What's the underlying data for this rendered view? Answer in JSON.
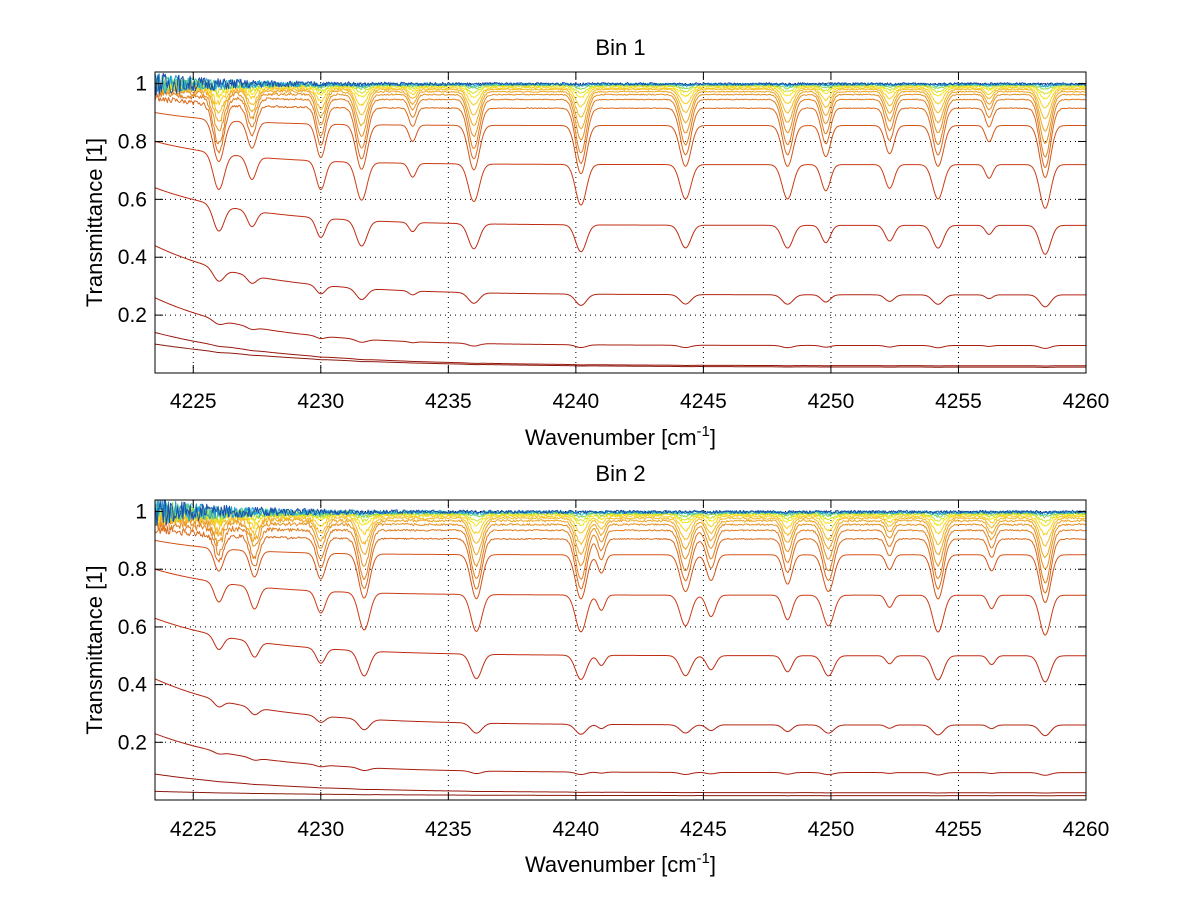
{
  "chart_data": [
    {
      "type": "line",
      "title": "Bin 1",
      "xlabel": "Wavenumber [cm",
      "xlabel_sup": "-1",
      "xlabel_end": "]",
      "ylabel": "Transmittance [1]",
      "xlim": [
        4223.5,
        4260
      ],
      "ylim": [
        0,
        1.04
      ],
      "xticks": [
        4225,
        4230,
        4235,
        4240,
        4245,
        4250,
        4255,
        4260
      ],
      "yticks": [
        0.2,
        0.4,
        0.6,
        0.8,
        1
      ],
      "xtick_labels": [
        "4225",
        "4230",
        "4235",
        "4240",
        "4245",
        "4250",
        "4255",
        "4260"
      ],
      "ytick_labels": [
        "0.2",
        "0.4",
        "0.6",
        "0.8",
        "1"
      ],
      "grid": true,
      "legend": "none",
      "lines": [
        {
          "color": "#8b1a0f",
          "base": 0.02,
          "start": 0.1,
          "tau": 6.0,
          "depth": 0.05,
          "noise": 0
        },
        {
          "color": "#99170d",
          "base": 0.025,
          "start": 0.14,
          "tau": 5.0,
          "depth": 0.05,
          "noise": 0
        },
        {
          "color": "#a81e10",
          "base": 0.095,
          "start": 0.26,
          "tau": 4.0,
          "depth": 0.15,
          "noise": 0
        },
        {
          "color": "#b32412",
          "base": 0.27,
          "start": 0.44,
          "tau": 4.0,
          "depth": 0.22,
          "noise": 0
        },
        {
          "color": "#c02d14",
          "base": 0.51,
          "start": 0.64,
          "tau": 4.0,
          "depth": 0.28,
          "noise": 0
        },
        {
          "color": "#cc3c16",
          "base": 0.72,
          "start": 0.8,
          "tau": 3.5,
          "depth": 0.3,
          "noise": 0
        },
        {
          "color": "#d35418",
          "base": 0.855,
          "start": 0.9,
          "tau": 3.0,
          "depth": 0.3,
          "noise": 0
        },
        {
          "color": "#da6a1c",
          "base": 0.915,
          "start": 0.95,
          "tau": 2.5,
          "depth": 0.32,
          "noise": 0.004
        },
        {
          "color": "#e07e20",
          "base": 0.945,
          "start": 0.965,
          "tau": 2.0,
          "depth": 0.3,
          "noise": 0.005
        },
        {
          "color": "#e59022",
          "base": 0.962,
          "start": 0.975,
          "tau": 2.0,
          "depth": 0.25,
          "noise": 0.006
        },
        {
          "color": "#eda524",
          "base": 0.972,
          "start": 0.985,
          "tau": 2.0,
          "depth": 0.2,
          "noise": 0.007
        },
        {
          "color": "#f3ba24",
          "base": 0.98,
          "start": 0.99,
          "tau": 2.0,
          "depth": 0.15,
          "noise": 0.008
        },
        {
          "color": "#f8cf1e",
          "base": 0.985,
          "start": 0.99,
          "tau": 2.0,
          "depth": 0.1,
          "noise": 0.008
        },
        {
          "color": "#f6e41a",
          "base": 0.99,
          "start": 0.995,
          "tau": 2.0,
          "depth": 0.06,
          "noise": 0.009
        },
        {
          "color": "#cfe22e",
          "base": 0.993,
          "start": 0.997,
          "tau": 2.0,
          "depth": 0.04,
          "noise": 0.009
        },
        {
          "color": "#8bd64a",
          "base": 0.995,
          "start": 1.0,
          "tau": 2.0,
          "depth": 0.02,
          "noise": 0.01
        },
        {
          "color": "#3fc7b5",
          "base": 0.997,
          "start": 1.0,
          "tau": 2.0,
          "depth": 0.01,
          "noise": 0.012
        },
        {
          "color": "#1f9ad6",
          "base": 0.998,
          "start": 1.0,
          "tau": 2.0,
          "depth": 0.005,
          "noise": 0.014
        },
        {
          "color": "#1b4fa8",
          "base": 0.999,
          "start": 1.0,
          "tau": 2.0,
          "depth": 0.002,
          "noise": 0.015
        }
      ],
      "absorption_lines": [
        {
          "x": 4226.0,
          "w": 0.3
        },
        {
          "x": 4227.3,
          "w": 0.25
        },
        {
          "x": 4230.0,
          "w": 0.25
        },
        {
          "x": 4231.6,
          "w": 0.3
        },
        {
          "x": 4233.6,
          "w": 0.2
        },
        {
          "x": 4236.0,
          "w": 0.3
        },
        {
          "x": 4240.2,
          "w": 0.3
        },
        {
          "x": 4244.3,
          "w": 0.3
        },
        {
          "x": 4248.3,
          "w": 0.3
        },
        {
          "x": 4249.8,
          "w": 0.25
        },
        {
          "x": 4252.3,
          "w": 0.25
        },
        {
          "x": 4254.2,
          "w": 0.3
        },
        {
          "x": 4256.2,
          "w": 0.2
        },
        {
          "x": 4258.4,
          "w": 0.3
        }
      ],
      "absorption_strength": [
        0.55,
        0.35,
        0.45,
        0.6,
        0.22,
        0.6,
        0.65,
        0.55,
        0.55,
        0.42,
        0.38,
        0.55,
        0.22,
        0.7
      ]
    },
    {
      "type": "line",
      "title": "Bin 2",
      "xlabel": "Wavenumber [cm",
      "xlabel_sup": "-1",
      "xlabel_end": "]",
      "ylabel": "Transmittance [1]",
      "xlim": [
        4223.5,
        4260
      ],
      "ylim": [
        0,
        1.04
      ],
      "xticks": [
        4225,
        4230,
        4235,
        4240,
        4245,
        4250,
        4255,
        4260
      ],
      "yticks": [
        0.2,
        0.4,
        0.6,
        0.8,
        1
      ],
      "xtick_labels": [
        "4225",
        "4230",
        "4235",
        "4240",
        "4245",
        "4250",
        "4255",
        "4260"
      ],
      "ytick_labels": [
        "0.2",
        "0.4",
        "0.6",
        "0.8",
        "1"
      ],
      "grid": true,
      "legend": "none",
      "lines": [
        {
          "color": "#8b1a0f",
          "base": 0.015,
          "start": 0.03,
          "tau": 6.0,
          "depth": 0.05,
          "noise": 0
        },
        {
          "color": "#99170d",
          "base": 0.025,
          "start": 0.09,
          "tau": 5.0,
          "depth": 0.05,
          "noise": 0
        },
        {
          "color": "#a81e10",
          "base": 0.095,
          "start": 0.23,
          "tau": 4.0,
          "depth": 0.15,
          "noise": 0
        },
        {
          "color": "#b32412",
          "base": 0.26,
          "start": 0.42,
          "tau": 4.0,
          "depth": 0.22,
          "noise": 0
        },
        {
          "color": "#c02d14",
          "base": 0.5,
          "start": 0.63,
          "tau": 4.0,
          "depth": 0.28,
          "noise": 0
        },
        {
          "color": "#cc3c16",
          "base": 0.71,
          "start": 0.8,
          "tau": 3.5,
          "depth": 0.3,
          "noise": 0
        },
        {
          "color": "#d35418",
          "base": 0.85,
          "start": 0.9,
          "tau": 3.0,
          "depth": 0.3,
          "noise": 0
        },
        {
          "color": "#da6a1c",
          "base": 0.905,
          "start": 0.94,
          "tau": 2.5,
          "depth": 0.32,
          "noise": 0.006
        },
        {
          "color": "#e07e20",
          "base": 0.935,
          "start": 0.96,
          "tau": 2.0,
          "depth": 0.3,
          "noise": 0.008
        },
        {
          "color": "#e59022",
          "base": 0.955,
          "start": 0.975,
          "tau": 2.0,
          "depth": 0.25,
          "noise": 0.01
        },
        {
          "color": "#eda524",
          "base": 0.968,
          "start": 0.98,
          "tau": 2.0,
          "depth": 0.2,
          "noise": 0.012
        },
        {
          "color": "#f3ba24",
          "base": 0.977,
          "start": 0.985,
          "tau": 2.0,
          "depth": 0.15,
          "noise": 0.012
        },
        {
          "color": "#f8cf1e",
          "base": 0.984,
          "start": 0.99,
          "tau": 2.0,
          "depth": 0.1,
          "noise": 0.013
        },
        {
          "color": "#f6e41a",
          "base": 0.989,
          "start": 0.995,
          "tau": 2.0,
          "depth": 0.06,
          "noise": 0.013
        },
        {
          "color": "#cfe22e",
          "base": 0.992,
          "start": 0.997,
          "tau": 2.0,
          "depth": 0.04,
          "noise": 0.014
        },
        {
          "color": "#8bd64a",
          "base": 0.995,
          "start": 1.0,
          "tau": 2.0,
          "depth": 0.02,
          "noise": 0.015
        },
        {
          "color": "#3fc7b5",
          "base": 0.997,
          "start": 1.0,
          "tau": 2.0,
          "depth": 0.01,
          "noise": 0.016
        },
        {
          "color": "#1f9ad6",
          "base": 0.998,
          "start": 1.0,
          "tau": 2.0,
          "depth": 0.005,
          "noise": 0.017
        },
        {
          "color": "#1b4fa8",
          "base": 0.999,
          "start": 1.0,
          "tau": 2.0,
          "depth": 0.002,
          "noise": 0.018
        }
      ],
      "absorption_lines": [
        {
          "x": 4226.0,
          "w": 0.25
        },
        {
          "x": 4227.4,
          "w": 0.25
        },
        {
          "x": 4230.0,
          "w": 0.25
        },
        {
          "x": 4231.7,
          "w": 0.3
        },
        {
          "x": 4236.1,
          "w": 0.3
        },
        {
          "x": 4240.2,
          "w": 0.3
        },
        {
          "x": 4241.0,
          "w": 0.2
        },
        {
          "x": 4244.3,
          "w": 0.3
        },
        {
          "x": 4245.3,
          "w": 0.25
        },
        {
          "x": 4248.3,
          "w": 0.25
        },
        {
          "x": 4249.9,
          "w": 0.3
        },
        {
          "x": 4252.3,
          "w": 0.2
        },
        {
          "x": 4254.2,
          "w": 0.3
        },
        {
          "x": 4256.3,
          "w": 0.2
        },
        {
          "x": 4258.4,
          "w": 0.3
        }
      ],
      "absorption_strength": [
        0.3,
        0.35,
        0.35,
        0.6,
        0.6,
        0.6,
        0.25,
        0.5,
        0.35,
        0.4,
        0.5,
        0.2,
        0.6,
        0.22,
        0.65
      ]
    }
  ]
}
